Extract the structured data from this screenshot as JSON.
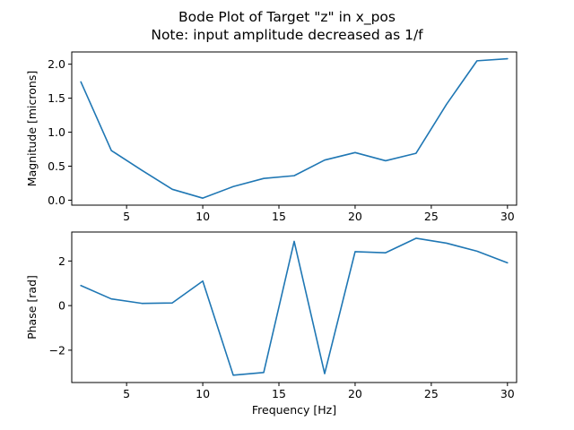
{
  "title_line1": "Bode Plot of Target \"z\" in x_pos",
  "title_line2": "Note: input amplitude decreased as 1/f",
  "colors": {
    "series": "#1f77b4"
  },
  "chart_data": [
    {
      "type": "line",
      "ylabel": "Magnitude [microns]",
      "xlabel": "",
      "xlim": [
        1.4,
        30.6
      ],
      "ylim": [
        -0.073,
        2.18
      ],
      "xticks": [
        5,
        10,
        15,
        20,
        25,
        30
      ],
      "xtick_labels": [
        "5",
        "10",
        "15",
        "20",
        "25",
        "30"
      ],
      "yticks": [
        0.0,
        0.5,
        1.0,
        1.5,
        2.0
      ],
      "ytick_labels": [
        "0.0",
        "0.5",
        "1.0",
        "1.5",
        "2.0"
      ],
      "grid": false,
      "series": [
        {
          "x": [
            2,
            4,
            6,
            8,
            10,
            12,
            14,
            16,
            18,
            20,
            22,
            24,
            26,
            28,
            30
          ],
          "values": [
            1.74,
            0.73,
            0.44,
            0.16,
            0.03,
            0.2,
            0.32,
            0.36,
            0.59,
            0.7,
            0.58,
            0.69,
            1.41,
            2.05,
            2.08
          ]
        }
      ]
    },
    {
      "type": "line",
      "ylabel": "Phase [rad]",
      "xlabel": "Frequency [Hz]",
      "xlim": [
        1.4,
        30.6
      ],
      "ylim": [
        -3.45,
        3.3
      ],
      "xticks": [
        5,
        10,
        15,
        20,
        25,
        30
      ],
      "xtick_labels": [
        "5",
        "10",
        "15",
        "20",
        "25",
        "30"
      ],
      "yticks": [
        -2,
        0,
        2
      ],
      "ytick_labels": [
        "−2",
        "0",
        "2"
      ],
      "grid": false,
      "series": [
        {
          "x": [
            2,
            4,
            6,
            8,
            10,
            12,
            14,
            16,
            18,
            20,
            22,
            24,
            26,
            28,
            30
          ],
          "values": [
            0.9,
            0.3,
            0.1,
            0.12,
            1.1,
            -3.12,
            -3.0,
            2.88,
            -3.05,
            2.42,
            2.37,
            3.02,
            2.8,
            2.44,
            1.92
          ]
        }
      ]
    }
  ]
}
